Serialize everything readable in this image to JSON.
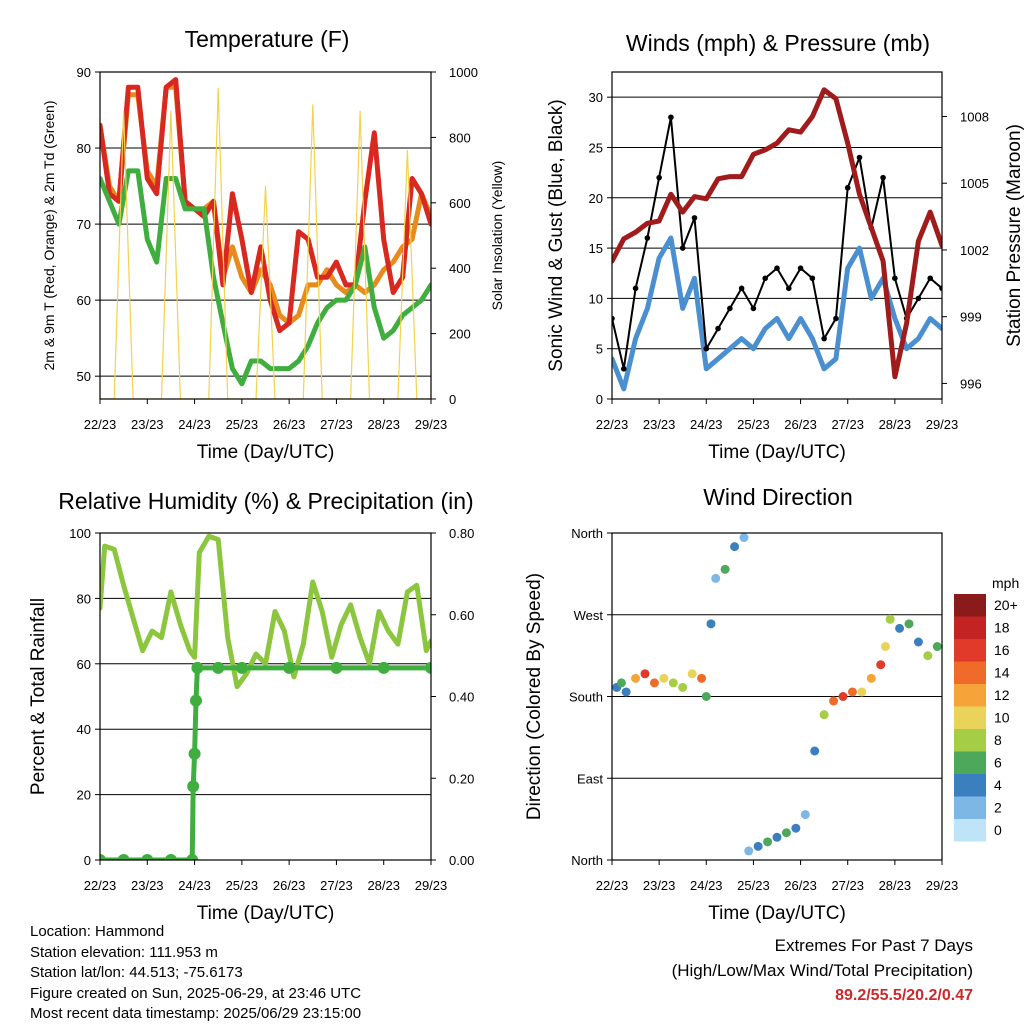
{
  "info": {
    "location": "Location: Hammond",
    "elevation": "Station elevation: 111.953 m",
    "latlon": "Station lat/lon: 44.513; -75.6173",
    "created": "Figure created on Sun, 2025-06-29, at 23:46 UTC",
    "latest": "Most recent data timestamp: 2025/06/29 23:15:00"
  },
  "extremes": {
    "title": "Extremes For Past 7 Days",
    "subtitle": "(High/Low/Max Wind/Total Precipitation)",
    "values": "89.2/55.5/20.2/0.47",
    "color": "#cc2a2a"
  },
  "chart_data": [
    {
      "type": "line",
      "title": "Temperature (F)",
      "xlabel": "Time (Day/UTC)",
      "ylabel": "2m & 9m T (Red, Orange) & 2m Td (Green)",
      "y2label": "Solar Insolation (Yellow)",
      "x_ticks": [
        "22/23",
        "23/23",
        "24/23",
        "25/23",
        "26/23",
        "27/23",
        "28/23",
        "29/23"
      ],
      "xlim": [
        0,
        7
      ],
      "ylim": [
        47,
        90
      ],
      "y_ticks": [
        50,
        60,
        70,
        80,
        90
      ],
      "y2lim": [
        0,
        1000
      ],
      "y2_ticks": [
        0,
        200,
        400,
        600,
        800,
        1000
      ],
      "grid": "horizontal",
      "series": [
        {
          "color": "#e88a1c",
          "axis": "left",
          "x": [
            0,
            0.2,
            0.4,
            0.6,
            0.8,
            1.0,
            1.2,
            1.4,
            1.6,
            1.8,
            2.0,
            2.2,
            2.4,
            2.6,
            2.8,
            3.0,
            3.2,
            3.4,
            3.6,
            3.8,
            4.0,
            4.2,
            4.4,
            4.6,
            4.8,
            5.0,
            5.2,
            5.4,
            5.6,
            5.8,
            6.0,
            6.2,
            6.4,
            6.6,
            6.8,
            7.0
          ],
          "y": [
            83,
            75,
            73,
            87,
            87,
            77,
            75,
            88,
            88,
            73,
            72,
            72,
            73,
            63,
            67,
            63,
            61,
            64,
            62,
            58,
            57,
            58,
            62,
            62,
            64,
            62,
            61,
            62,
            61,
            62,
            64,
            65,
            67,
            68,
            74,
            71
          ]
        },
        {
          "color": "#d8281f",
          "axis": "left",
          "x": [
            0,
            0.2,
            0.4,
            0.6,
            0.8,
            1.0,
            1.2,
            1.4,
            1.6,
            1.8,
            2.0,
            2.2,
            2.4,
            2.6,
            2.8,
            3.0,
            3.2,
            3.4,
            3.6,
            3.8,
            4.0,
            4.2,
            4.4,
            4.6,
            4.8,
            5.0,
            5.2,
            5.4,
            5.6,
            5.8,
            6.0,
            6.2,
            6.4,
            6.6,
            6.8,
            7.0
          ],
          "y": [
            83,
            74,
            73,
            88,
            88,
            76,
            74,
            88,
            89,
            73,
            72,
            71,
            73,
            62,
            74,
            68,
            61,
            67,
            60,
            56,
            57,
            69,
            68,
            63,
            63,
            65,
            62,
            62,
            73,
            82,
            68,
            61,
            63,
            76,
            74,
            70
          ]
        },
        {
          "color": "#3fae3f",
          "axis": "left",
          "x": [
            0,
            0.2,
            0.4,
            0.6,
            0.8,
            1.0,
            1.2,
            1.4,
            1.6,
            1.8,
            2.0,
            2.2,
            2.4,
            2.6,
            2.8,
            3.0,
            3.2,
            3.4,
            3.6,
            3.8,
            4.0,
            4.2,
            4.4,
            4.6,
            4.8,
            5.0,
            5.2,
            5.4,
            5.6,
            5.8,
            6.0,
            6.2,
            6.4,
            6.6,
            6.8,
            7.0
          ],
          "y": [
            76,
            73,
            70,
            77,
            77,
            68,
            65,
            76,
            76,
            72,
            72,
            72,
            63,
            57,
            51,
            49,
            52,
            52,
            51,
            51,
            51,
            52,
            54,
            57,
            59,
            60,
            60,
            62,
            67,
            59,
            55,
            56,
            58,
            59,
            60,
            62
          ]
        },
        {
          "color": "#f3d24d",
          "axis": "right",
          "x": [
            0,
            0.3,
            0.5,
            0.7,
            1.0,
            1.3,
            1.5,
            1.7,
            2.0,
            2.3,
            2.5,
            2.7,
            3.0,
            3.3,
            3.5,
            3.7,
            4.0,
            4.3,
            4.5,
            4.7,
            5.0,
            5.3,
            5.5,
            5.7,
            6.0,
            6.3,
            6.5,
            6.7,
            7.0
          ],
          "y": [
            0,
            0,
            880,
            0,
            0,
            0,
            880,
            0,
            0,
            0,
            950,
            0,
            0,
            0,
            650,
            0,
            0,
            0,
            900,
            0,
            0,
            0,
            880,
            0,
            0,
            0,
            760,
            0,
            0
          ]
        }
      ]
    },
    {
      "type": "line",
      "title": "Winds (mph) & Pressure (mb)",
      "xlabel": "Time (Day/UTC)",
      "ylabel": "Sonic Wind & Gust (Blue, Black)",
      "y2label": "Station Pressure (Maroon)",
      "x_ticks": [
        "22/23",
        "23/23",
        "24/23",
        "25/23",
        "26/23",
        "27/23",
        "28/23",
        "29/23"
      ],
      "xlim": [
        0,
        7
      ],
      "ylim": [
        0,
        32.5
      ],
      "y_ticks": [
        0,
        5,
        10,
        15,
        20,
        25,
        30
      ],
      "y2lim": [
        995.3,
        1010
      ],
      "y2_ticks": [
        996,
        999,
        1002,
        1005,
        1008
      ],
      "grid": "horizontal",
      "series": [
        {
          "color": "#4a90d0",
          "axis": "left",
          "x": [
            0,
            0.25,
            0.5,
            0.75,
            1.0,
            1.25,
            1.5,
            1.75,
            2.0,
            2.25,
            2.5,
            2.75,
            3.0,
            3.25,
            3.5,
            3.75,
            4.0,
            4.25,
            4.5,
            4.75,
            5.0,
            5.25,
            5.5,
            5.75,
            6.0,
            6.25,
            6.5,
            6.75,
            7.0
          ],
          "y": [
            4,
            1,
            6,
            9,
            14,
            16,
            9,
            12,
            3,
            4,
            5,
            6,
            5,
            7,
            8,
            6,
            8,
            6,
            3,
            4,
            13,
            15,
            10,
            12,
            8,
            5,
            6,
            8,
            7
          ]
        },
        {
          "color": "#000000",
          "axis": "left",
          "x": [
            0,
            0.25,
            0.5,
            0.75,
            1.0,
            1.25,
            1.5,
            1.75,
            2.0,
            2.25,
            2.5,
            2.75,
            3.0,
            3.25,
            3.5,
            3.75,
            4.0,
            4.25,
            4.5,
            4.75,
            5.0,
            5.25,
            5.5,
            5.75,
            6.0,
            6.25,
            6.5,
            6.75,
            7.0
          ],
          "y": [
            8,
            3,
            11,
            16,
            22,
            28,
            15,
            18,
            5,
            7,
            9,
            11,
            9,
            12,
            13,
            11,
            13,
            12,
            6,
            8,
            21,
            24,
            17,
            22,
            12,
            8,
            10,
            12,
            11
          ]
        },
        {
          "color": "#a01c1c",
          "axis": "right",
          "x": [
            0,
            0.25,
            0.5,
            0.75,
            1.0,
            1.25,
            1.5,
            1.75,
            2.0,
            2.25,
            2.5,
            2.75,
            3.0,
            3.25,
            3.5,
            3.75,
            4.0,
            4.25,
            4.5,
            4.75,
            5.0,
            5.25,
            5.5,
            5.75,
            6.0,
            6.25,
            6.5,
            6.75,
            7.0
          ],
          "y": [
            1001.5,
            1002.5,
            1002.8,
            1003.2,
            1003.3,
            1004.5,
            1003.7,
            1004.4,
            1004.3,
            1005.2,
            1005.3,
            1005.3,
            1006.3,
            1006.5,
            1006.8,
            1007.4,
            1007.3,
            1008.0,
            1009.2,
            1008.8,
            1006.8,
            1004.5,
            1003.0,
            1001.5,
            996.3,
            998.7,
            1002.4,
            1003.7,
            1002.2
          ]
        }
      ]
    },
    {
      "type": "line",
      "title": "Relative Humidity (%) & Precipitation (in)",
      "xlabel": "Time (Day/UTC)",
      "ylabel": "Percent & Total Rainfall",
      "x_ticks": [
        "22/23",
        "23/23",
        "24/23",
        "25/23",
        "26/23",
        "27/23",
        "28/23",
        "29/23"
      ],
      "xlim": [
        0,
        7
      ],
      "ylim": [
        0,
        100
      ],
      "y_ticks": [
        0,
        20,
        40,
        60,
        80,
        100
      ],
      "y2lim": [
        0,
        0.8
      ],
      "y2_ticks": [
        "0.00",
        "0.20",
        "0.40",
        "0.60",
        "0.80"
      ],
      "grid": "horizontal",
      "series": [
        {
          "color": "#8cc63f",
          "axis": "left",
          "x": [
            0,
            0.1,
            0.3,
            0.5,
            0.7,
            0.9,
            1.1,
            1.3,
            1.5,
            1.7,
            1.9,
            2.0,
            2.1,
            2.3,
            2.5,
            2.7,
            2.9,
            3.1,
            3.3,
            3.5,
            3.7,
            3.9,
            4.1,
            4.3,
            4.5,
            4.7,
            4.9,
            5.1,
            5.3,
            5.5,
            5.7,
            5.9,
            6.1,
            6.3,
            6.5,
            6.7,
            6.9,
            7.0
          ],
          "y": [
            77,
            96,
            95,
            84,
            74,
            64,
            70,
            68,
            82,
            72,
            64,
            62,
            94,
            99,
            98,
            68,
            53,
            57,
            63,
            60,
            76,
            70,
            56,
            66,
            85,
            76,
            62,
            72,
            78,
            68,
            60,
            76,
            70,
            66,
            82,
            84,
            64,
            67
          ]
        },
        {
          "color": "#3fae3f",
          "axis": "right",
          "x": [
            0,
            0.5,
            1.0,
            1.5,
            1.95,
            1.97,
            2.0,
            2.03,
            2.06,
            2.5,
            3.0,
            4.0,
            5.0,
            6.0,
            7.0
          ],
          "y": [
            0.0,
            0.0,
            0.0,
            0.0,
            0.0,
            0.18,
            0.26,
            0.39,
            0.47,
            0.47,
            0.47,
            0.47,
            0.47,
            0.47,
            0.47
          ]
        }
      ]
    },
    {
      "type": "scatter",
      "title": "Wind Direction",
      "xlabel": "Time (Day/UTC)",
      "ylabel": "Direction (Colored By Speed)",
      "x_ticks": [
        "22/23",
        "23/23",
        "24/23",
        "25/23",
        "26/23",
        "27/23",
        "28/23",
        "29/23"
      ],
      "xlim": [
        0,
        7
      ],
      "ylim": [
        0,
        360
      ],
      "y_tick_values": [
        0,
        90,
        180,
        270,
        360
      ],
      "y_ticks": [
        "North",
        "East",
        "South",
        "West",
        "North"
      ],
      "grid": "horizontal",
      "legend": "right",
      "colorbar_title": "mph",
      "colorbar_labels": [
        "20+",
        "18",
        "16",
        "14",
        "12",
        "10",
        "8",
        "6",
        "4",
        "2",
        "0"
      ],
      "colorbar_colors": [
        "#8b1a1a",
        "#c42323",
        "#e13a2a",
        "#f06a2a",
        "#f6a43a",
        "#ead35a",
        "#a5cd46",
        "#4ea85c",
        "#3c7fbf",
        "#7db7e6",
        "#bfe3f7"
      ],
      "points": [
        {
          "x": 0.1,
          "y": 190,
          "speed": 4
        },
        {
          "x": 0.2,
          "y": 195,
          "speed": 6
        },
        {
          "x": 0.3,
          "y": 185,
          "speed": 4
        },
        {
          "x": 0.5,
          "y": 200,
          "speed": 12
        },
        {
          "x": 0.7,
          "y": 205,
          "speed": 16
        },
        {
          "x": 0.9,
          "y": 195,
          "speed": 14
        },
        {
          "x": 1.1,
          "y": 200,
          "speed": 10
        },
        {
          "x": 1.3,
          "y": 195,
          "speed": 8
        },
        {
          "x": 1.5,
          "y": 190,
          "speed": 8
        },
        {
          "x": 1.7,
          "y": 205,
          "speed": 10
        },
        {
          "x": 1.9,
          "y": 200,
          "speed": 14
        },
        {
          "x": 2.0,
          "y": 180,
          "speed": 6
        },
        {
          "x": 2.1,
          "y": 260,
          "speed": 4
        },
        {
          "x": 2.2,
          "y": 310,
          "speed": 2
        },
        {
          "x": 2.4,
          "y": 320,
          "speed": 6
        },
        {
          "x": 2.6,
          "y": 345,
          "speed": 4
        },
        {
          "x": 2.8,
          "y": 355,
          "speed": 2
        },
        {
          "x": 2.9,
          "y": 10,
          "speed": 2
        },
        {
          "x": 3.1,
          "y": 15,
          "speed": 4
        },
        {
          "x": 3.3,
          "y": 20,
          "speed": 6
        },
        {
          "x": 3.5,
          "y": 25,
          "speed": 4
        },
        {
          "x": 3.7,
          "y": 30,
          "speed": 6
        },
        {
          "x": 3.9,
          "y": 35,
          "speed": 4
        },
        {
          "x": 4.1,
          "y": 50,
          "speed": 2
        },
        {
          "x": 4.3,
          "y": 120,
          "speed": 4
        },
        {
          "x": 4.5,
          "y": 160,
          "speed": 8
        },
        {
          "x": 4.7,
          "y": 175,
          "speed": 14
        },
        {
          "x": 4.9,
          "y": 180,
          "speed": 16
        },
        {
          "x": 5.1,
          "y": 185,
          "speed": 14
        },
        {
          "x": 5.3,
          "y": 185,
          "speed": 10
        },
        {
          "x": 5.5,
          "y": 200,
          "speed": 12
        },
        {
          "x": 5.7,
          "y": 215,
          "speed": 16
        },
        {
          "x": 5.8,
          "y": 235,
          "speed": 10
        },
        {
          "x": 5.9,
          "y": 265,
          "speed": 8
        },
        {
          "x": 6.1,
          "y": 255,
          "speed": 4
        },
        {
          "x": 6.3,
          "y": 260,
          "speed": 6
        },
        {
          "x": 6.5,
          "y": 240,
          "speed": 4
        },
        {
          "x": 6.7,
          "y": 225,
          "speed": 8
        },
        {
          "x": 6.9,
          "y": 235,
          "speed": 6
        }
      ]
    }
  ]
}
